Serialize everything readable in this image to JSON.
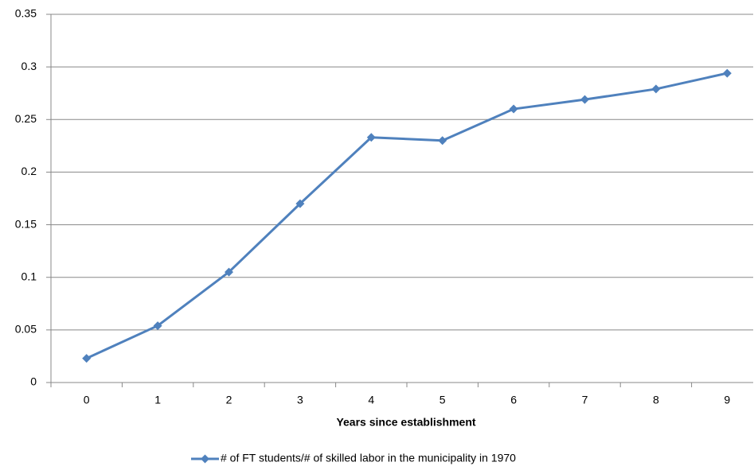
{
  "chart_data": {
    "type": "line",
    "x_label": "Years since establishment",
    "categories": [
      "0",
      "1",
      "2",
      "3",
      "4",
      "5",
      "6",
      "7",
      "8",
      "9"
    ],
    "series": [
      {
        "name": "# of FT students/# of skilled labor in the municipality in 1970",
        "color": "#4f81bd",
        "values": [
          0.023,
          0.054,
          0.105,
          0.17,
          0.233,
          0.23,
          0.26,
          0.269,
          0.279,
          0.294
        ]
      }
    ],
    "ylim": [
      0,
      0.35
    ],
    "yticks": [
      0,
      0.05,
      0.1,
      0.15,
      0.2,
      0.25,
      0.3,
      0.35
    ],
    "grid": true,
    "legend": "bottom"
  }
}
